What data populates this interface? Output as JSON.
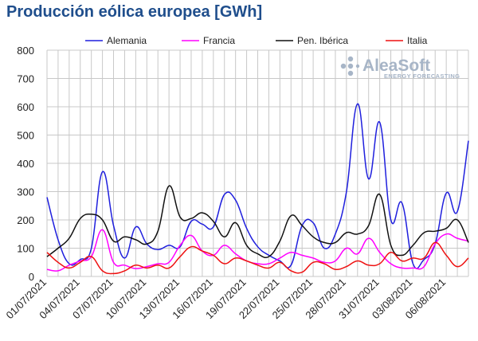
{
  "chart_data": {
    "type": "line",
    "title": "Producción eólica europea [GWh]",
    "xlabel": "",
    "ylabel": "",
    "ylim": [
      0,
      800
    ],
    "yticks": [
      0,
      100,
      200,
      300,
      400,
      500,
      600,
      700,
      800
    ],
    "grid": true,
    "legend_position": "top",
    "x": [
      "01/07/2021",
      "02/07/2021",
      "03/07/2021",
      "04/07/2021",
      "05/07/2021",
      "06/07/2021",
      "07/07/2021",
      "08/07/2021",
      "09/07/2021",
      "10/07/2021",
      "11/07/2021",
      "12/07/2021",
      "13/07/2021",
      "14/07/2021",
      "15/07/2021",
      "16/07/2021",
      "17/07/2021",
      "18/07/2021",
      "19/07/2021",
      "20/07/2021",
      "21/07/2021",
      "22/07/2021",
      "23/07/2021",
      "24/07/2021",
      "25/07/2021",
      "26/07/2021",
      "27/07/2021",
      "28/07/2021",
      "29/07/2021",
      "30/07/2021",
      "31/07/2021",
      "01/08/2021",
      "02/08/2021",
      "03/08/2021",
      "04/08/2021",
      "05/08/2021",
      "06/08/2021",
      "07/08/2021",
      "08/08/2021"
    ],
    "x_tick_labels": [
      "01/07/2021",
      "04/07/2021",
      "07/07/2021",
      "10/07/2021",
      "13/07/2021",
      "16/07/2021",
      "19/07/2021",
      "22/07/2021",
      "25/07/2021",
      "28/07/2021",
      "31/07/2021",
      "03/08/2021",
      "06/08/2021"
    ],
    "series": [
      {
        "name": "Alemania",
        "color": "#1f1fdd",
        "values": [
          280,
          130,
          45,
          60,
          100,
          370,
          180,
          65,
          175,
          115,
          95,
          110,
          105,
          195,
          185,
          175,
          290,
          270,
          170,
          105,
          75,
          55,
          40,
          180,
          190,
          100,
          150,
          300,
          610,
          345,
          545,
          200,
          260,
          45,
          60,
          115,
          295,
          230,
          480
        ]
      },
      {
        "name": "Francia",
        "color": "#ff00ff",
        "values": [
          25,
          20,
          40,
          55,
          70,
          165,
          50,
          40,
          28,
          35,
          45,
          50,
          110,
          145,
          90,
          75,
          110,
          80,
          55,
          45,
          45,
          65,
          85,
          75,
          65,
          50,
          55,
          100,
          80,
          135,
          85,
          45,
          30,
          30,
          35,
          115,
          150,
          135,
          125
        ]
      },
      {
        "name": "Pen. Ibérica",
        "color": "#111111",
        "values": [
          70,
          100,
          135,
          205,
          220,
          200,
          125,
          140,
          130,
          115,
          160,
          320,
          210,
          205,
          225,
          195,
          140,
          190,
          110,
          80,
          70,
          125,
          215,
          180,
          140,
          120,
          120,
          155,
          150,
          180,
          290,
          110,
          75,
          110,
          155,
          160,
          170,
          200,
          120
        ]
      },
      {
        "name": "Italia",
        "color": "#ee1111",
        "values": [
          85,
          50,
          30,
          50,
          70,
          20,
          10,
          20,
          40,
          30,
          40,
          30,
          70,
          105,
          90,
          75,
          45,
          65,
          55,
          40,
          30,
          50,
          20,
          15,
          50,
          45,
          25,
          35,
          55,
          40,
          45,
          85,
          55,
          65,
          65,
          120,
          75,
          35,
          65
        ]
      }
    ]
  },
  "logo": {
    "main": "AleaSoft",
    "sub": "ENERGY FORECASTING"
  }
}
